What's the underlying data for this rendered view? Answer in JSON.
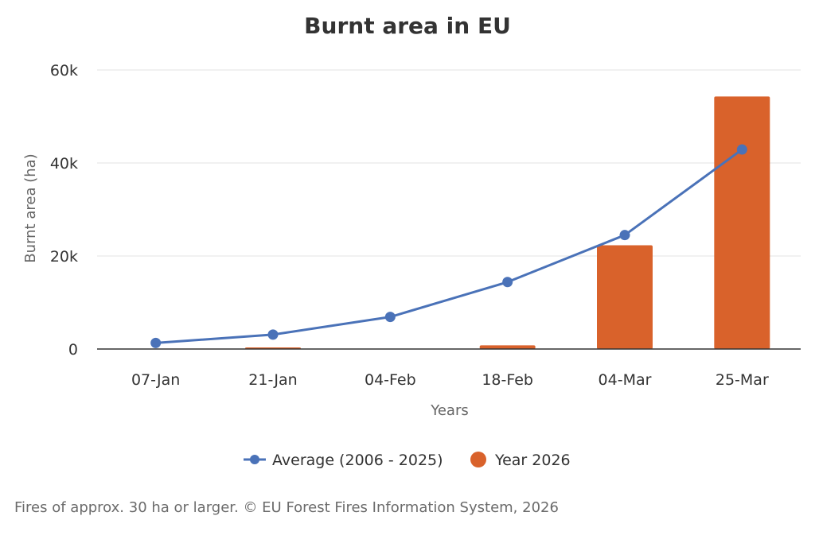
{
  "chart_data": {
    "type": "bar",
    "title": "Burnt area in EU",
    "xlabel": "Years",
    "ylabel": "Burnt area (ha)",
    "categories": [
      "07-Jan",
      "21-Jan",
      "04-Feb",
      "18-Feb",
      "04-Mar",
      "25-Mar"
    ],
    "ylim": [
      0,
      60000
    ],
    "yticks": [
      0,
      20000,
      40000,
      60000
    ],
    "ytick_labels": [
      "0",
      "20k",
      "40k",
      "60k"
    ],
    "grid": true,
    "legend_position": "bottom",
    "series": [
      {
        "name": "Average (2006 - 2025)",
        "type": "line",
        "color": "#4a72b8",
        "values": [
          1300,
          3100,
          6900,
          14400,
          24500,
          42900
        ]
      },
      {
        "name": "Year 2026",
        "type": "bar",
        "color": "#d9622b",
        "values": [
          0,
          200,
          0,
          800,
          22300,
          54300
        ]
      }
    ]
  },
  "footer": {
    "note": "Fires of approx. 30 ha or larger. © EU Forest Fires Information System, 2026"
  }
}
